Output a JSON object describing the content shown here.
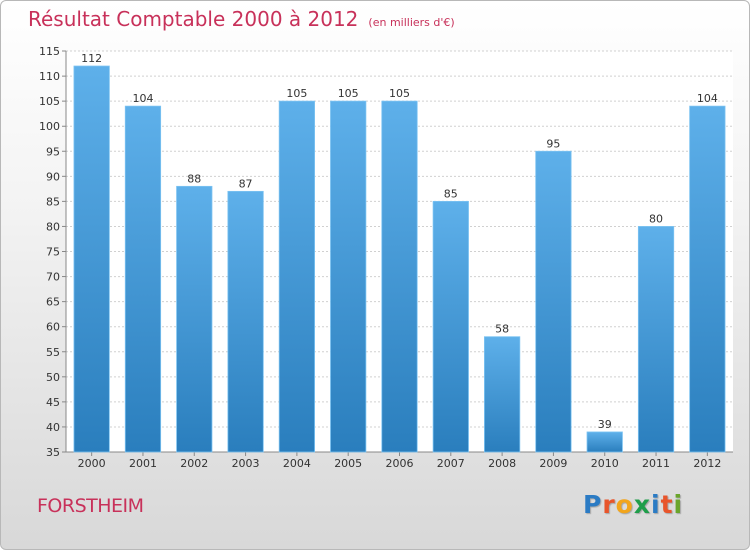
{
  "header": {
    "title": "Résultat Comptable 2000 à 2012",
    "subtitle": "(en milliers d'€)"
  },
  "footer": {
    "commune": "FORSTHEIM",
    "logo_text": "Proxiti"
  },
  "colors": {
    "title": "#c8315a",
    "bar_top": "#5eb0ea",
    "bar_bottom": "#2a7ebd",
    "grid": "#d0d0d0"
  },
  "chart_data": {
    "type": "bar",
    "title": "Résultat Comptable 2000 à 2012",
    "subtitle": "(en milliers d'€)",
    "categories": [
      "2000",
      "2001",
      "2002",
      "2003",
      "2004",
      "2005",
      "2006",
      "2007",
      "2008",
      "2009",
      "2010",
      "2011",
      "2012"
    ],
    "values": [
      112,
      104,
      88,
      87,
      105,
      105,
      105,
      85,
      58,
      95,
      39,
      80,
      104
    ],
    "ylim": [
      35,
      115
    ],
    "ytick_step": 5,
    "grid": true,
    "data_labels": true,
    "legend": "none"
  }
}
